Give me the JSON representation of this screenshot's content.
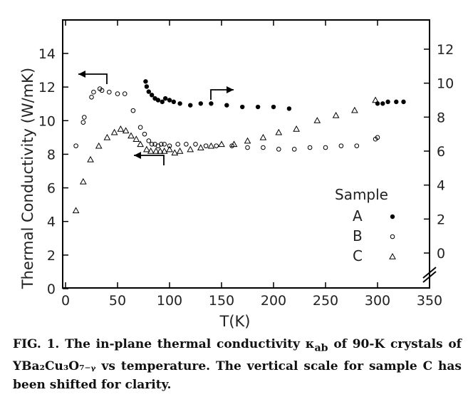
{
  "chart_data": {
    "type": "scatter",
    "xlabel": "T(K)",
    "ylabel": "Thermal Conductivity (W/mK)",
    "xlim": [
      0,
      350
    ],
    "ylim_left": [
      0,
      16
    ],
    "ylim_right": [
      -2,
      14
    ],
    "x_ticks": [
      "0",
      "50",
      "100",
      "150",
      "200",
      "250",
      "300",
      "350"
    ],
    "y_left_ticks": [
      "0",
      "2",
      "4",
      "6",
      "8",
      "10",
      "12",
      "14"
    ],
    "y_right_ticks": [
      "0",
      "2",
      "4",
      "6",
      "8",
      "10",
      "12"
    ],
    "grid": false,
    "legend_title": "Sample",
    "series": [
      {
        "name": "A",
        "marker": "filled-circle",
        "axis": "right",
        "points": [
          [
            77,
            10.1
          ],
          [
            78,
            9.8
          ],
          [
            80,
            9.5
          ],
          [
            83,
            9.3
          ],
          [
            86,
            9.1
          ],
          [
            89,
            9.0
          ],
          [
            93,
            8.9
          ],
          [
            96,
            9.1
          ],
          [
            100,
            9.0
          ],
          [
            104,
            8.9
          ],
          [
            110,
            8.8
          ],
          [
            120,
            8.7
          ],
          [
            130,
            8.8
          ],
          [
            140,
            8.8
          ],
          [
            155,
            8.7
          ],
          [
            170,
            8.6
          ],
          [
            185,
            8.6
          ],
          [
            200,
            8.6
          ],
          [
            215,
            8.5
          ],
          [
            300,
            8.8
          ],
          [
            305,
            8.8
          ],
          [
            310,
            8.9
          ],
          [
            318,
            8.9
          ],
          [
            325,
            8.9
          ]
        ]
      },
      {
        "name": "B",
        "marker": "open-circle",
        "axis": "left",
        "points": [
          [
            10,
            8.5
          ],
          [
            17,
            9.9
          ],
          [
            18,
            10.2
          ],
          [
            25,
            11.4
          ],
          [
            27,
            11.7
          ],
          [
            33,
            11.9
          ],
          [
            35,
            11.8
          ],
          [
            42,
            11.7
          ],
          [
            50,
            11.6
          ],
          [
            57,
            11.6
          ],
          [
            65,
            10.6
          ],
          [
            72,
            9.6
          ],
          [
            76,
            9.2
          ],
          [
            80,
            8.8
          ],
          [
            83,
            8.6
          ],
          [
            86,
            8.6
          ],
          [
            89,
            8.5
          ],
          [
            92,
            8.6
          ],
          [
            95,
            8.6
          ],
          [
            100,
            8.5
          ],
          [
            108,
            8.6
          ],
          [
            116,
            8.6
          ],
          [
            125,
            8.6
          ],
          [
            135,
            8.5
          ],
          [
            145,
            8.5
          ],
          [
            160,
            8.5
          ],
          [
            175,
            8.4
          ],
          [
            190,
            8.4
          ],
          [
            205,
            8.3
          ],
          [
            220,
            8.3
          ],
          [
            235,
            8.4
          ],
          [
            250,
            8.4
          ],
          [
            265,
            8.5
          ],
          [
            280,
            8.5
          ],
          [
            298,
            8.9
          ],
          [
            300,
            9.0
          ]
        ]
      },
      {
        "name": "C",
        "marker": "open-triangle",
        "axis": "right",
        "points": [
          [
            10,
            2.5
          ],
          [
            17,
            4.2
          ],
          [
            24,
            5.5
          ],
          [
            32,
            6.3
          ],
          [
            40,
            6.8
          ],
          [
            47,
            7.1
          ],
          [
            53,
            7.3
          ],
          [
            58,
            7.2
          ],
          [
            63,
            6.9
          ],
          [
            68,
            6.7
          ],
          [
            72,
            6.4
          ],
          [
            78,
            6.1
          ],
          [
            82,
            6.0
          ],
          [
            87,
            6.0
          ],
          [
            91,
            6.0
          ],
          [
            95,
            6.0
          ],
          [
            100,
            6.1
          ],
          [
            105,
            5.9
          ],
          [
            110,
            6.0
          ],
          [
            120,
            6.1
          ],
          [
            130,
            6.2
          ],
          [
            140,
            6.3
          ],
          [
            150,
            6.4
          ],
          [
            162,
            6.4
          ],
          [
            175,
            6.6
          ],
          [
            190,
            6.8
          ],
          [
            205,
            7.1
          ],
          [
            222,
            7.3
          ],
          [
            242,
            7.8
          ],
          [
            260,
            8.1
          ],
          [
            278,
            8.4
          ],
          [
            298,
            9.0
          ]
        ]
      }
    ],
    "annotations": [
      "left-arrow near sample B peak (B uses left axis)",
      "right-arrow near sample A (A uses right axis)",
      "left-arrow near sample C minimum"
    ]
  },
  "caption": {
    "prefix": "FIG. 1.",
    "text": "  The in-plane thermal conductivity κ",
    "sub": "ab",
    "text2": " of 90-K crystals of YBa₂Cu₃O₇₋ᵧ vs temperature.  The vertical scale for sample C has been shifted for clarity."
  }
}
